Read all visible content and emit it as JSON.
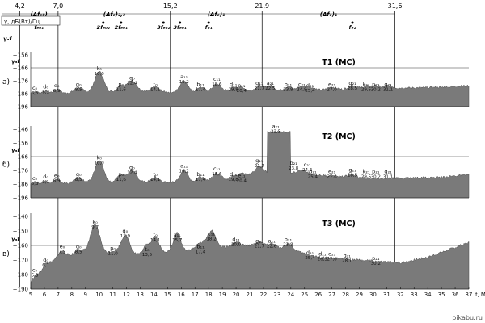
{
  "chart_data": {
    "type": "area",
    "x_label": "f, МГц",
    "y_unit_label": "γ, дБ(Вт)/Гц",
    "x_range": [
      5,
      38
    ],
    "x_ticks": [
      5,
      6,
      7,
      8,
      9,
      10,
      11,
      12,
      13,
      14,
      15,
      16,
      17,
      18,
      19,
      20,
      21,
      22,
      23,
      24,
      25,
      26,
      27,
      28,
      29,
      30,
      31,
      32,
      33,
      34,
      35,
      36,
      37
    ],
    "boundaries": [
      {
        "f": 4.2,
        "label": "4,2"
      },
      {
        "f": 7.0,
        "label": "7,0"
      },
      {
        "f": 15.2,
        "label": "15,2"
      },
      {
        "f": 21.9,
        "label": "21,9"
      },
      {
        "f": 31.6,
        "label": "31,6"
      }
    ],
    "bands": [
      {
        "from": 4.2,
        "to": 7.0,
        "label": "(Δfₑ₀)"
      },
      {
        "from": 7.0,
        "to": 15.2,
        "label": "(Δfₑ)₂,₃"
      },
      {
        "from": 15.2,
        "to": 21.9,
        "label": "(Δfₑ)₁"
      },
      {
        "from": 21.9,
        "to": 31.6,
        "label": "(Δfₑ)₁"
      }
    ],
    "top_markers": [
      {
        "f": 5.6,
        "label": "fₑ₀₁"
      },
      {
        "f": 10.3,
        "label": "2fₑ₀₂"
      },
      {
        "f": 11.6,
        "label": "2fₑ₀₁"
      },
      {
        "f": 14.7,
        "label": "3fₑ₀₂"
      },
      {
        "f": 15.9,
        "label": "3fₑ₀₁"
      },
      {
        "f": 18.0,
        "label": "fₑ₁"
      },
      {
        "f": 28.5,
        "label": "fₑ₂"
      }
    ],
    "header_left": [
      "fₑ₀₂",
      "γₐf"
    ],
    "panels": [
      {
        "name": "T1 (MC)",
        "tag": "а)",
        "ylim": [
          -196,
          -156
        ],
        "ref_label": "γₐf",
        "ref_y": -166,
        "yticks": [
          -156,
          -166,
          -176,
          -186,
          -196
        ],
        "baseline": [
          [
            5,
            -186
          ],
          [
            9,
            -185
          ],
          [
            13,
            -184.5
          ],
          [
            17,
            -185
          ],
          [
            21,
            -184
          ],
          [
            26,
            -183
          ],
          [
            30,
            -182
          ],
          [
            35,
            -181
          ],
          [
            38,
            -179
          ]
        ],
        "peaks": [
          {
            "f": 5.3,
            "h": 1.5,
            "w": 0.3
          },
          {
            "f": 6.1,
            "h": 2,
            "w": 0.3
          },
          {
            "f": 6.9,
            "h": 3,
            "w": 0.3
          },
          {
            "f": 8.5,
            "h": 4,
            "w": 0.4
          },
          {
            "f": 10.0,
            "h": 16,
            "w": 0.45
          },
          {
            "f": 11.6,
            "h": 5,
            "w": 0.4
          },
          {
            "f": 12.4,
            "h": 9,
            "w": 0.45
          },
          {
            "f": 14.1,
            "h": 4,
            "w": 0.4
          },
          {
            "f": 16.2,
            "h": 9,
            "w": 0.4
          },
          {
            "f": 17.4,
            "h": 4,
            "w": 0.4
          },
          {
            "f": 18.6,
            "h": 6,
            "w": 0.45
          },
          {
            "f": 19.8,
            "h": 3,
            "w": 0.4
          },
          {
            "f": 20.4,
            "h": 3,
            "w": 0.4
          },
          {
            "f": 21.7,
            "h": 4,
            "w": 0.4
          },
          {
            "f": 22.5,
            "h": 4,
            "w": 0.4
          },
          {
            "f": 23.8,
            "h": 3,
            "w": 0.4
          },
          {
            "f": 24.8,
            "h": 3,
            "w": 0.4
          },
          {
            "f": 25.4,
            "h": 2,
            "w": 0.4
          },
          {
            "f": 27.0,
            "h": 2,
            "w": 0.4
          },
          {
            "f": 28.5,
            "h": 3,
            "w": 0.4
          },
          {
            "f": 29.5,
            "h": 2,
            "w": 0.4
          },
          {
            "f": 30.2,
            "h": 2,
            "w": 0.4
          },
          {
            "f": 31.1,
            "h": 2,
            "w": 0.4
          }
        ],
        "labels": [
          {
            "name": "c₀",
            "value": "5,3",
            "f": 5.3,
            "y": -183
          },
          {
            "name": "d₀",
            "value": "6,1",
            "f": 6.1,
            "y": -182
          },
          {
            "name": "e₀",
            "value": "6,9",
            "f": 6.9,
            "y": -181
          },
          {
            "name": "g₀",
            "value": "8,5",
            "f": 8.5,
            "y": -180
          },
          {
            "name": "k₀",
            "value": "10,0",
            "f": 10.0,
            "y": -168
          },
          {
            "name": "p₀",
            "value": "11,6",
            "f": 11.6,
            "y": -180
          },
          {
            "name": "q₀",
            "value": "12,4",
            "f": 12.4,
            "y": -175
          },
          {
            "name": "t₀",
            "value": "14,1",
            "f": 14.1,
            "y": -180
          },
          {
            "name": "a₁₁",
            "value": "16,2",
            "f": 16.2,
            "y": -174
          },
          {
            "name": "b₁₁",
            "value": "17,4",
            "f": 17.4,
            "y": -180
          },
          {
            "name": "c₁₁",
            "value": "18,6",
            "f": 18.6,
            "y": -176
          },
          {
            "name": "d₁₁",
            "value": "19,8",
            "f": 19.8,
            "y": -180
          },
          {
            "name": "e₁₁",
            "value": "20,4",
            "f": 20.4,
            "y": -181
          },
          {
            "name": "g₁₁",
            "value": "21,7",
            "f": 21.7,
            "y": -179
          },
          {
            "name": "a₂₁",
            "value": "22,5",
            "f": 22.5,
            "y": -179
          },
          {
            "name": "b₂₁",
            "value": "23,8",
            "f": 23.8,
            "y": -180
          },
          {
            "name": "c₂₁",
            "value": "24,8",
            "f": 24.8,
            "y": -180
          },
          {
            "name": "d₂₁",
            "value": "25,4",
            "f": 25.4,
            "y": -181
          },
          {
            "name": "e₂₁",
            "value": "27,0",
            "f": 27.0,
            "y": -180
          },
          {
            "name": "g₂₁",
            "value": "28,5",
            "f": 28.5,
            "y": -179
          },
          {
            "name": "k₂₁",
            "value": "29,5",
            "f": 29.5,
            "y": -180
          },
          {
            "name": "p₂₁",
            "value": "30,2",
            "f": 30.2,
            "y": -180
          },
          {
            "name": "q₂₁",
            "value": "31,1",
            "f": 31.1,
            "y": -180
          }
        ]
      },
      {
        "name": "T2 (MC)",
        "tag": "б)",
        "ylim": [
          -196,
          -146
        ],
        "ref_label": "γₐf",
        "ref_y": -166,
        "yticks": [
          -146,
          -156,
          -166,
          -176,
          -186,
          -196
        ],
        "baseline": [
          [
            5,
            -186
          ],
          [
            9,
            -185
          ],
          [
            13,
            -184.5
          ],
          [
            17,
            -185
          ],
          [
            20,
            -183
          ],
          [
            21.5,
            -177
          ],
          [
            27,
            -180
          ],
          [
            30,
            -182
          ],
          [
            35,
            -181
          ],
          [
            38,
            -178
          ]
        ],
        "peaks": [
          {
            "f": 5.3,
            "h": 1.5,
            "w": 0.3
          },
          {
            "f": 6.1,
            "h": 2,
            "w": 0.3
          },
          {
            "f": 6.9,
            "h": 3,
            "w": 0.3
          },
          {
            "f": 8.5,
            "h": 4,
            "w": 0.4
          },
          {
            "f": 10.0,
            "h": 16,
            "w": 0.45
          },
          {
            "f": 11.6,
            "h": 5,
            "w": 0.4
          },
          {
            "f": 12.4,
            "h": 9,
            "w": 0.45
          },
          {
            "f": 14.1,
            "h": 4,
            "w": 0.4
          },
          {
            "f": 16.2,
            "h": 9,
            "w": 0.4
          },
          {
            "f": 17.4,
            "h": 4,
            "w": 0.4
          },
          {
            "f": 18.6,
            "h": 6,
            "w": 0.45
          },
          {
            "f": 19.8,
            "h": 3,
            "w": 0.4
          },
          {
            "f": 20.4,
            "h": 3,
            "w": 0.4
          },
          {
            "f": 21.7,
            "h": 4,
            "w": 0.35
          },
          {
            "f": 24.8,
            "h": 3,
            "w": 0.5
          },
          {
            "f": 28.5,
            "h": 2,
            "w": 0.4
          }
        ],
        "plateau": {
          "from": 22.3,
          "to": 24.0,
          "top": -148
        },
        "labels": [
          {
            "name": "c₀",
            "value": "5,3",
            "f": 5.3,
            "y": -183
          },
          {
            "name": "d₀",
            "value": "6,1",
            "f": 6.1,
            "y": -182
          },
          {
            "name": "e₀",
            "value": "6,9",
            "f": 6.9,
            "y": -181
          },
          {
            "name": "g₀",
            "value": "8,5",
            "f": 8.5,
            "y": -180
          },
          {
            "name": "k₀",
            "value": "10,0",
            "f": 10.0,
            "y": -168
          },
          {
            "name": "p₀",
            "value": "11,6",
            "f": 11.6,
            "y": -180
          },
          {
            "name": "q₀",
            "value": "12,4",
            "f": 12.4,
            "y": -175
          },
          {
            "name": "t₀",
            "value": "14,1",
            "f": 14.1,
            "y": -180
          },
          {
            "name": "a₁₁",
            "value": "16,2",
            "f": 16.2,
            "y": -174
          },
          {
            "name": "b₁₁",
            "value": "17,4",
            "f": 17.4,
            "y": -180
          },
          {
            "name": "c₁₁",
            "value": "18,6",
            "f": 18.6,
            "y": -176
          },
          {
            "name": "d₁₁",
            "value": "19,8",
            "f": 19.8,
            "y": -180
          },
          {
            "name": "e₁₁",
            "value": "20,4",
            "f": 20.4,
            "y": -181
          },
          {
            "name": "g₁₁",
            "value": "21,7",
            "f": 21.7,
            "y": -170
          },
          {
            "name": "a₂₁",
            "value": "22,5",
            "f": 22.9,
            "y": -145
          },
          {
            "name": "b₂₁",
            "value": "23,8",
            "f": 24.2,
            "y": -172
          },
          {
            "name": "c₂₁",
            "value": "24,6",
            "f": 25.2,
            "y": -173
          },
          {
            "name": "d₂₁",
            "value": "25,4",
            "f": 25.6,
            "y": -178
          },
          {
            "name": "e₂₁",
            "value": "27,0",
            "f": 27.0,
            "y": -178
          },
          {
            "name": "g₂₁",
            "value": "28,5",
            "f": 28.5,
            "y": -177
          },
          {
            "name": "k₂₁",
            "value": "29,5",
            "f": 29.5,
            "y": -178
          },
          {
            "name": "p₂₁",
            "value": "30,2",
            "f": 30.2,
            "y": -178
          },
          {
            "name": "q₂₁",
            "value": "31,1",
            "f": 31.1,
            "y": -178
          }
        ]
      },
      {
        "name": "T3 (MC)",
        "tag": "в)",
        "ylim": [
          -190,
          -140
        ],
        "ref_label": "γₐf",
        "ref_y": -160,
        "yticks": [
          -140,
          -150,
          -160,
          -170,
          -180,
          -190
        ],
        "baseline": [
          [
            5,
            -186
          ],
          [
            6,
            -176
          ],
          [
            7,
            -168
          ],
          [
            9,
            -166
          ],
          [
            13,
            -166
          ],
          [
            15,
            -164
          ],
          [
            18,
            -162
          ],
          [
            21,
            -160
          ],
          [
            24,
            -163
          ],
          [
            26,
            -168
          ],
          [
            29,
            -170
          ],
          [
            32,
            -172
          ],
          [
            34,
            -168
          ],
          [
            37,
            -158
          ],
          [
            38,
            -160
          ]
        ],
        "peaks": [
          {
            "f": 5.3,
            "h": 2,
            "w": 0.3
          },
          {
            "f": 6.1,
            "h": 3,
            "w": 0.3
          },
          {
            "f": 7.3,
            "h": 4,
            "w": 0.35
          },
          {
            "f": 8.5,
            "h": 4,
            "w": 0.4
          },
          {
            "f": 9.7,
            "h": 20,
            "w": 0.5
          },
          {
            "f": 11.0,
            "h": 2,
            "w": 0.4
          },
          {
            "f": 11.9,
            "h": 13,
            "w": 0.45
          },
          {
            "f": 13.5,
            "h": 6,
            "w": 0.35
          },
          {
            "f": 14.1,
            "h": 11,
            "w": 0.35
          },
          {
            "f": 15.7,
            "h": 12,
            "w": 0.35
          },
          {
            "f": 17.4,
            "h": 4,
            "w": 0.4
          },
          {
            "f": 18.2,
            "h": 12,
            "w": 0.45
          },
          {
            "f": 20.0,
            "h": 3,
            "w": 0.4
          },
          {
            "f": 21.7,
            "h": 3,
            "w": 0.4
          },
          {
            "f": 22.6,
            "h": 3,
            "w": 0.4
          },
          {
            "f": 23.8,
            "h": 4,
            "w": 0.4
          }
        ],
        "labels": [
          {
            "name": "c₀",
            "value": "5,3",
            "f": 5.3,
            "y": -178
          },
          {
            "name": "d₀",
            "value": "6,1",
            "f": 6.1,
            "y": -171
          },
          {
            "name": "e₀",
            "value": "7,3",
            "f": 7.3,
            "y": -162
          },
          {
            "name": "g₀",
            "value": "8,5",
            "f": 8.5,
            "y": -162
          },
          {
            "name": "k₀",
            "value": "9,7",
            "f": 9.7,
            "y": -145
          },
          {
            "name": "p₀",
            "value": "11,0",
            "f": 11.0,
            "y": -163
          },
          {
            "name": "q₀",
            "value": "11,9",
            "f": 11.9,
            "y": -151
          },
          {
            "name": "t₀",
            "value": "13,5",
            "f": 13.5,
            "y": -164
          },
          {
            "name": "t₀",
            "value": "14,1",
            "f": 14.1,
            "y": -154
          },
          {
            "name": "a₁₁",
            "value": "15,7",
            "f": 15.7,
            "y": -154
          },
          {
            "name": "b₁₁",
            "value": "17,4",
            "f": 17.4,
            "y": -162
          },
          {
            "name": "c₁₁",
            "value": "18,2",
            "f": 18.2,
            "y": -153
          },
          {
            "name": "d₁₁",
            "value": "20,0",
            "f": 20.0,
            "y": -157
          },
          {
            "name": "g₁₁",
            "value": "21,7",
            "f": 21.7,
            "y": -158
          },
          {
            "name": "a₂₁",
            "value": "22,6",
            "f": 22.6,
            "y": -158
          },
          {
            "name": "b₂₁",
            "value": "23,8",
            "f": 23.8,
            "y": -157
          },
          {
            "name": "d₂₁",
            "value": "25,4",
            "f": 25.4,
            "y": -166
          },
          {
            "name": "d₂₁",
            "value": "26,3",
            "f": 26.3,
            "y": -167
          },
          {
            "name": "e₂₁",
            "value": "27,0",
            "f": 27.0,
            "y": -167
          },
          {
            "name": "g₂₁",
            "value": "28,1",
            "f": 28.1,
            "y": -168
          },
          {
            "name": "p₂₁",
            "value": "30,2",
            "f": 30.2,
            "y": -170
          }
        ]
      }
    ]
  },
  "watermark": "pikabu.ru"
}
